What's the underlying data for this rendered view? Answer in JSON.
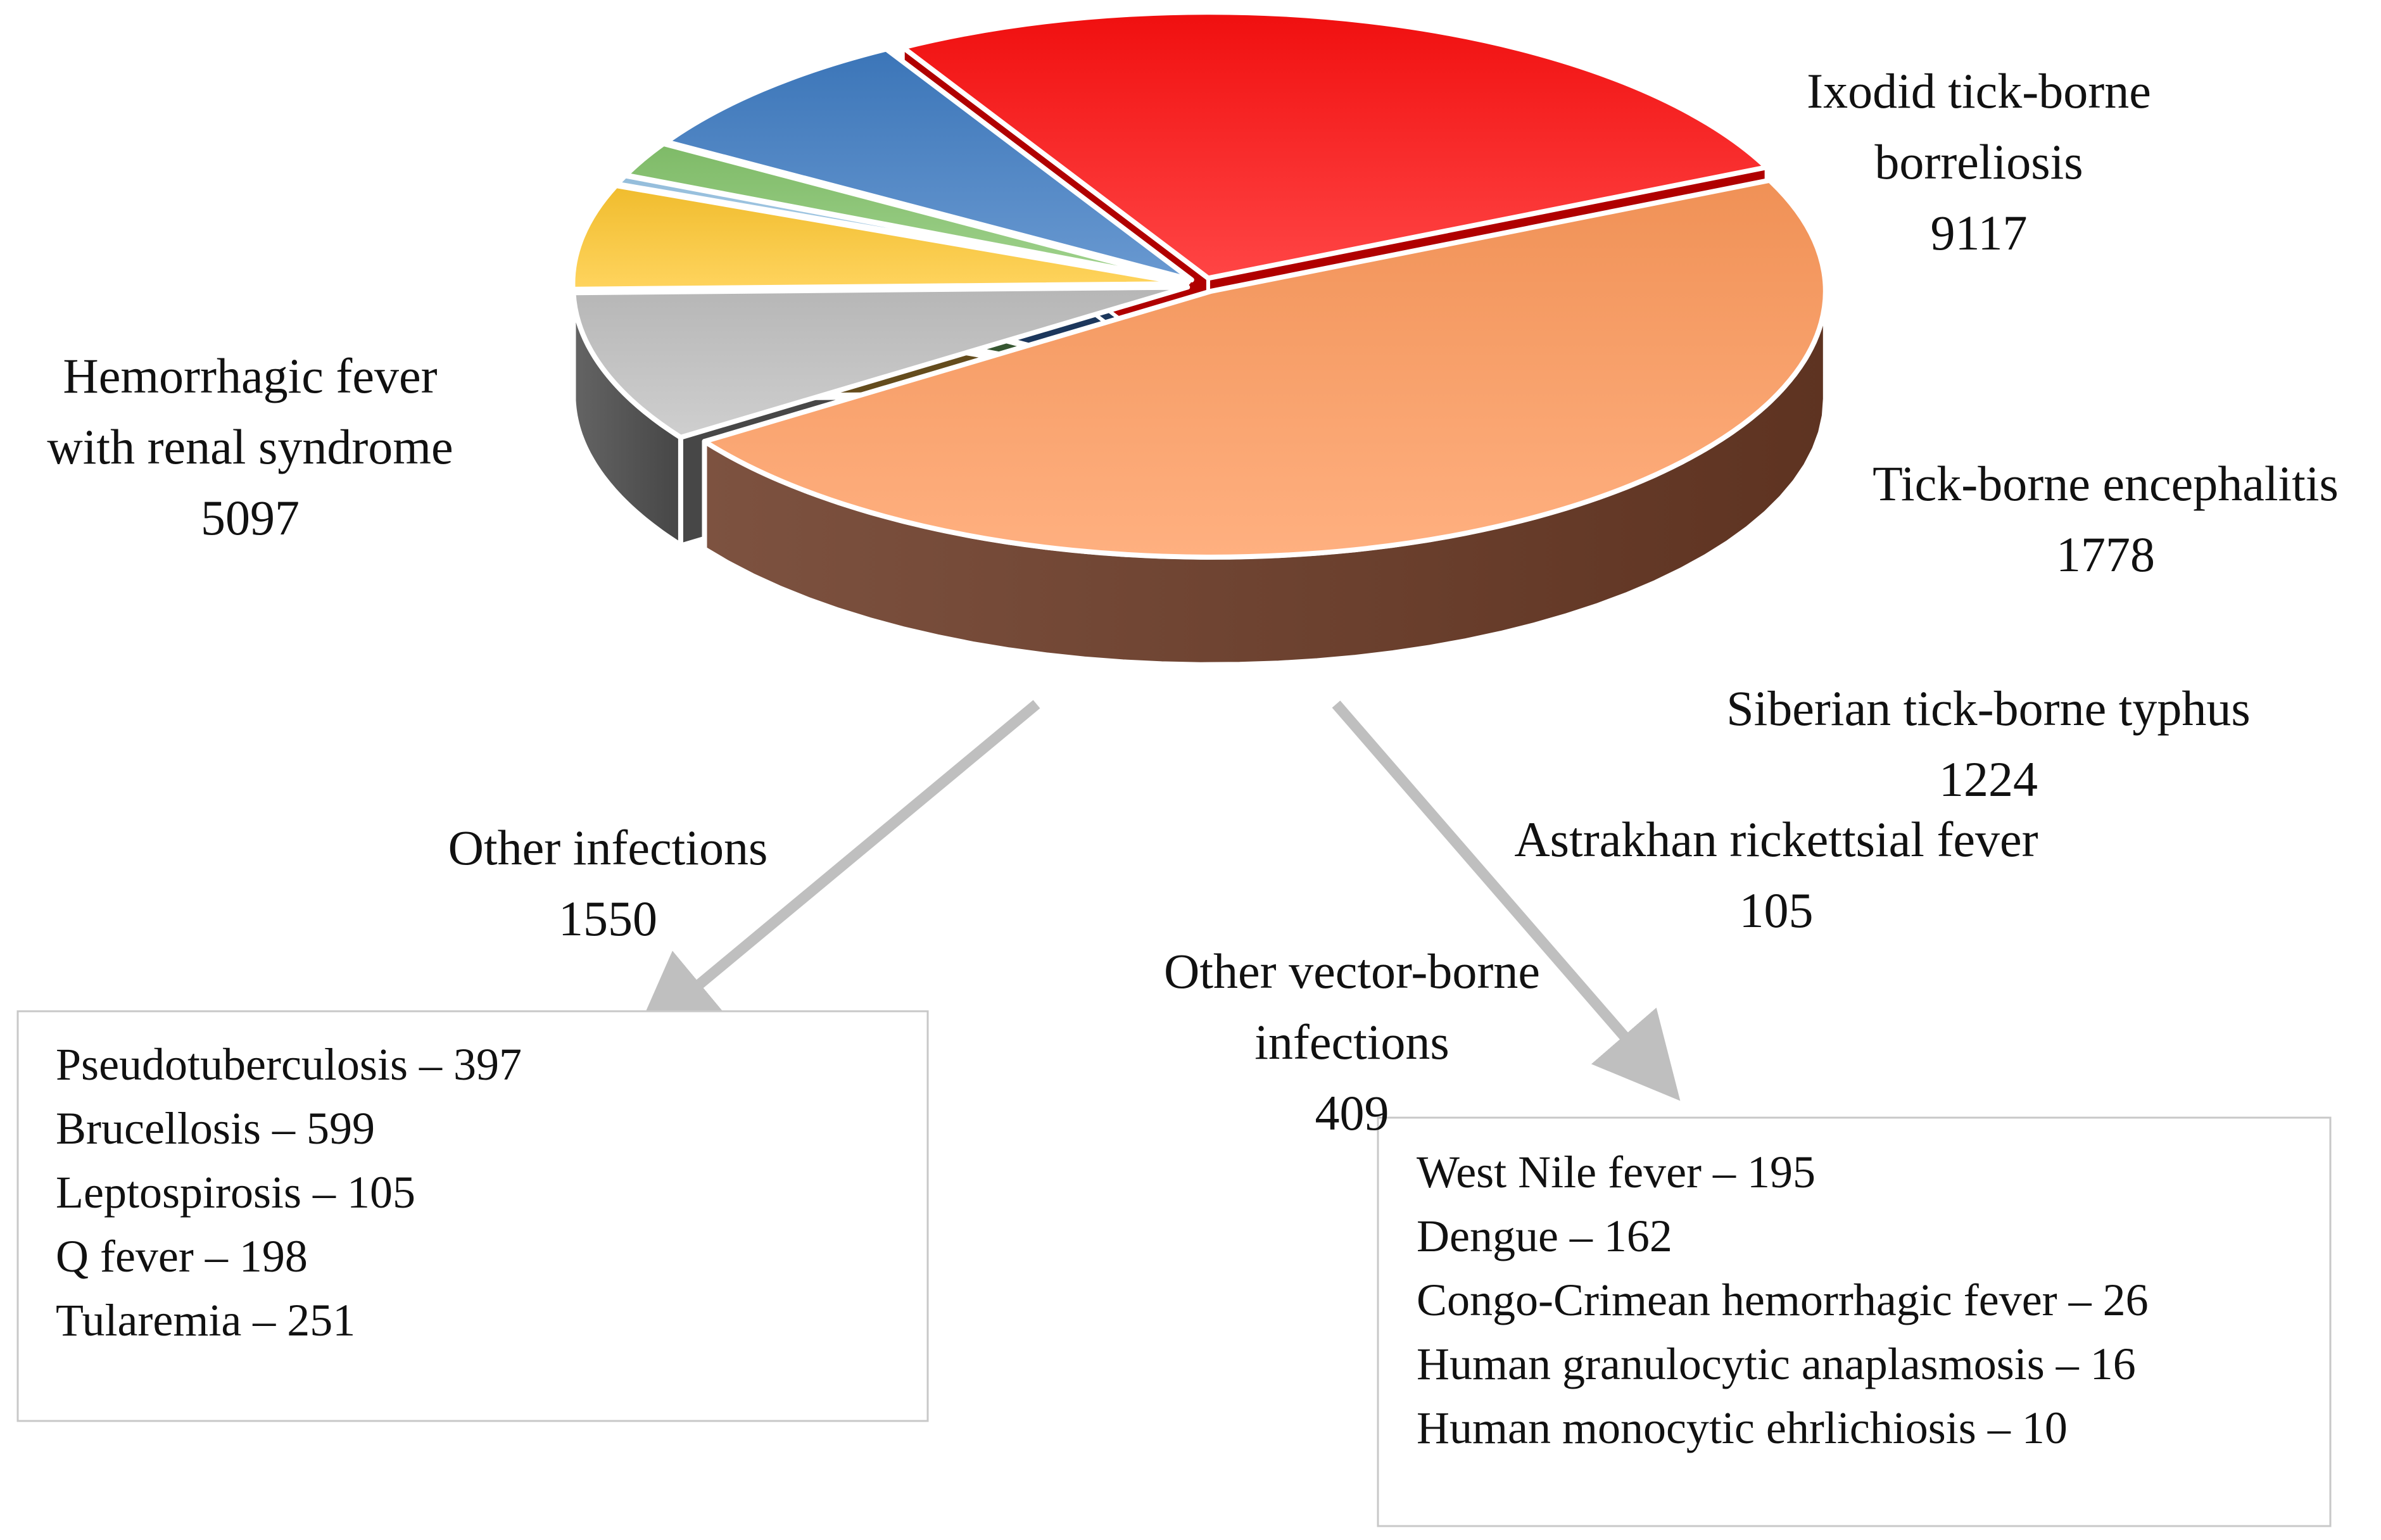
{
  "chart_data": {
    "type": "pie",
    "title": "",
    "series": [
      {
        "name": "Ixodid tick-borne borreliosis",
        "label_lines": [
          "Ixodid tick-borne",
          "borreliosis"
        ],
        "value": 9117,
        "value_text": "9117",
        "color": "#ff9a5c",
        "side_color": "#6b3a26"
      },
      {
        "name": "Tick-borne encephalitis",
        "label_lines": [
          "Tick-borne encephalitis"
        ],
        "value": 1778,
        "value_text": "1778",
        "color": "#c2c2c2",
        "side_color": "#4f4f4f"
      },
      {
        "name": "Siberian tick-borne typhus",
        "label_lines": [
          "Siberian tick-borne typhus"
        ],
        "value": 1224,
        "value_text": "1224",
        "color": "#ffc830",
        "side_color": "#6f5420"
      },
      {
        "name": "Astrakhan rickettsial fever",
        "label_lines": [
          "Astrakhan rickettsial fever"
        ],
        "value": 105,
        "value_text": "105",
        "color": "#9cc8e8",
        "side_color": "#2c4a62"
      },
      {
        "name": "Other vector-borne infections",
        "label_lines": [
          "Other vector-borne",
          "infections"
        ],
        "value": 409,
        "value_text": "409",
        "color": "#86c66e",
        "side_color": "#3c6036"
      },
      {
        "name": "Other infections",
        "label_lines": [
          "Other infections"
        ],
        "value": 1550,
        "value_text": "1550",
        "color": "#3f7cc4",
        "side_color": "#1f3d66"
      },
      {
        "name": "Hemorrhagic fever with renal syndrome",
        "label_lines": [
          "Hemorrhagic fever",
          "with renal syndrome"
        ],
        "value": 5097,
        "value_text": "5097",
        "color": "#ff1010",
        "side_color": "#c40000"
      }
    ],
    "breakdowns": [
      {
        "parent": "Other infections",
        "items": [
          "Pseudotuberculosis – 397",
          "Brucellosis – 599",
          "Leptospirosis – 105",
          "Q fever – 198",
          "Tularemia – 251"
        ]
      },
      {
        "parent": "Other vector-borne infections",
        "items": [
          "West Nile fever – 195",
          "Dengue – 162",
          "Congo-Crimean hemorrhagic fever – 26",
          "Human granulocytic anaplasmosis – 16",
          "Human monocytic ehrlichiosis  – 10"
        ]
      }
    ],
    "arrow_color": "#bfbfbf"
  }
}
